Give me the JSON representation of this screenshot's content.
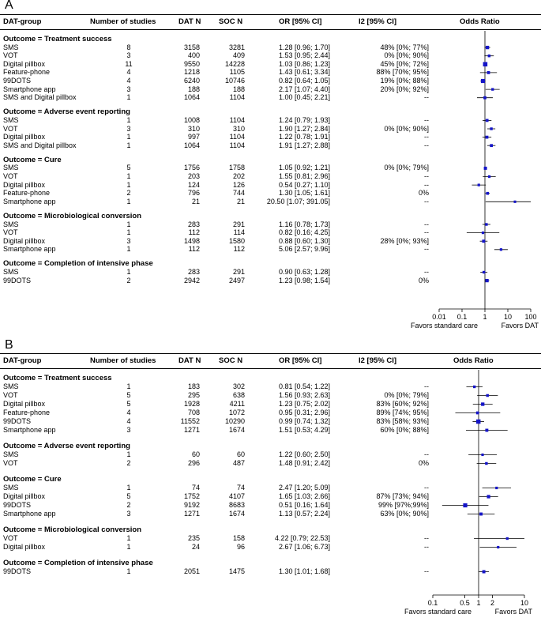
{
  "chart_data": [
    {
      "type": "forest",
      "panel_label": "A",
      "headers": {
        "group": "DAT-group",
        "studies": "Number of studies",
        "dat": "DAT N",
        "soc": "SOC N",
        "or": "OR [95% CI]",
        "i2": "I2 [95% CI]",
        "plot": "Odds Ratio"
      },
      "xaxis": {
        "scale": "log",
        "min": 0.01,
        "max": 100,
        "ticks": [
          0.01,
          0.1,
          1,
          10,
          100
        ],
        "tick_labels": [
          "0.01",
          "0.1",
          "1",
          "10",
          "100"
        ]
      },
      "favors_left": "Favors standard care",
      "favors_right": "Favors DAT",
      "outcomes": [
        {
          "title": "Outcome = Treatment success",
          "rows": [
            {
              "group": "SMS",
              "studies": "8",
              "dat_n": "3158",
              "soc_n": "3281",
              "or_text": "1.28 [0.96;  1.70]",
              "i2": "48% [0%; 77%]",
              "or": 1.28,
              "lo": 0.96,
              "hi": 1.7
            },
            {
              "group": "VOT",
              "studies": "3",
              "dat_n": "400",
              "soc_n": "409",
              "or_text": "1.53 [0.95;  2.44]",
              "i2": "0% [0%; 90%]",
              "or": 1.53,
              "lo": 0.95,
              "hi": 2.44
            },
            {
              "group": "Digital pillbox",
              "studies": "11",
              "dat_n": "9550",
              "soc_n": "14228",
              "or_text": "1.03 [0.86;  1.23]",
              "i2": "45% [0%; 72%]",
              "or": 1.03,
              "lo": 0.86,
              "hi": 1.23
            },
            {
              "group": "Feature-phone",
              "studies": "4",
              "dat_n": "1218",
              "soc_n": "1105",
              "or_text": "1.43 [0.61;  3.34]",
              "i2": "88% [70%; 95%]",
              "or": 1.43,
              "lo": 0.61,
              "hi": 3.34
            },
            {
              "group": "99DOTS",
              "studies": "4",
              "dat_n": "6240",
              "soc_n": "10746",
              "or_text": "0.82 [0.64;  1.05]",
              "i2": "19% [0%; 88%]",
              "or": 0.82,
              "lo": 0.64,
              "hi": 1.05
            },
            {
              "group": "Smartphone app",
              "studies": "3",
              "dat_n": "188",
              "soc_n": "188",
              "or_text": "2.17 [1.07;  4.40]",
              "i2": "20% [0%; 92%]",
              "or": 2.17,
              "lo": 1.07,
              "hi": 4.4
            },
            {
              "group": "SMS and Digital pillbox",
              "studies": "1",
              "dat_n": "1064",
              "soc_n": "1104",
              "or_text": "1.00 [0.45;  2.21]",
              "i2": "--",
              "or": 1.0,
              "lo": 0.45,
              "hi": 2.21
            }
          ]
        },
        {
          "title": "Outcome = Adverse event reporting",
          "rows": [
            {
              "group": "SMS",
              "studies": "1",
              "dat_n": "1008",
              "soc_n": "1104",
              "or_text": "1.24 [0.79;  1.93]",
              "i2": "--",
              "or": 1.24,
              "lo": 0.79,
              "hi": 1.93
            },
            {
              "group": "VOT",
              "studies": "3",
              "dat_n": "310",
              "soc_n": "310",
              "or_text": "1.90 [1.27;  2.84]",
              "i2": "0% [0%; 90%]",
              "or": 1.9,
              "lo": 1.27,
              "hi": 2.84
            },
            {
              "group": "Digital pillbox",
              "studies": "1",
              "dat_n": "997",
              "soc_n": "1104",
              "or_text": "1.22 [0.78;  1.91]",
              "i2": "--",
              "or": 1.22,
              "lo": 0.78,
              "hi": 1.91
            },
            {
              "group": "SMS and Digital pillbox",
              "studies": "1",
              "dat_n": "1064",
              "soc_n": "1104",
              "or_text": "1.91 [1.27;  2.88]",
              "i2": "--",
              "or": 1.91,
              "lo": 1.27,
              "hi": 2.88
            }
          ]
        },
        {
          "title": "Outcome = Cure",
          "rows": [
            {
              "group": "SMS",
              "studies": "5",
              "dat_n": "1756",
              "soc_n": "1758",
              "or_text": "1.05 [0.92;  1.21]",
              "i2": "0% [0%; 79%]",
              "or": 1.05,
              "lo": 0.92,
              "hi": 1.21
            },
            {
              "group": "VOT",
              "studies": "1",
              "dat_n": "203",
              "soc_n": "202",
              "or_text": "1.55 [0.81;  2.96]",
              "i2": "--",
              "or": 1.55,
              "lo": 0.81,
              "hi": 2.96
            },
            {
              "group": "Digital pillbox",
              "studies": "1",
              "dat_n": "124",
              "soc_n": "126",
              "or_text": "0.54 [0.27;  1.10]",
              "i2": "--",
              "or": 0.54,
              "lo": 0.27,
              "hi": 1.1
            },
            {
              "group": "Feature-phone",
              "studies": "2",
              "dat_n": "796",
              "soc_n": "744",
              "or_text": "1.30 [1.05;  1.61]",
              "i2": "0%",
              "or": 1.3,
              "lo": 1.05,
              "hi": 1.61
            },
            {
              "group": "Smartphone app",
              "studies": "1",
              "dat_n": "21",
              "soc_n": "21",
              "or_text": "20.50 [1.07; 391.05]",
              "i2": "--",
              "or": 20.5,
              "lo": 1.07,
              "hi": 391.05
            }
          ]
        },
        {
          "title": "Outcome = Microbiological conversion",
          "rows": [
            {
              "group": "SMS",
              "studies": "1",
              "dat_n": "283",
              "soc_n": "291",
              "or_text": "1.16 [0.78;  1.73]",
              "i2": "--",
              "or": 1.16,
              "lo": 0.78,
              "hi": 1.73
            },
            {
              "group": "VOT",
              "studies": "1",
              "dat_n": "112",
              "soc_n": "114",
              "or_text": "0.82 [0.16;  4.25]",
              "i2": "--",
              "or": 0.82,
              "lo": 0.16,
              "hi": 4.25
            },
            {
              "group": "Digital pillbox",
              "studies": "3",
              "dat_n": "1498",
              "soc_n": "1580",
              "or_text": "0.88 [0.60;  1.30]",
              "i2": "28% [0%; 93%]",
              "or": 0.88,
              "lo": 0.6,
              "hi": 1.3
            },
            {
              "group": "Smartphone app",
              "studies": "1",
              "dat_n": "112",
              "soc_n": "112",
              "or_text": "5.06 [2.57;  9.96]",
              "i2": "--",
              "or": 5.06,
              "lo": 2.57,
              "hi": 9.96
            }
          ]
        },
        {
          "title": "Outcome = Completion of intensive phase",
          "rows": [
            {
              "group": "SMS",
              "studies": "1",
              "dat_n": "283",
              "soc_n": "291",
              "or_text": "0.90 [0.63;  1.28]",
              "i2": "--",
              "or": 0.9,
              "lo": 0.63,
              "hi": 1.28
            },
            {
              "group": "99DOTS",
              "studies": "2",
              "dat_n": "2942",
              "soc_n": "2497",
              "or_text": "1.23 [0.98;  1.54]",
              "i2": "0%",
              "or": 1.23,
              "lo": 0.98,
              "hi": 1.54
            }
          ]
        }
      ]
    },
    {
      "type": "forest",
      "panel_label": "B",
      "headers": {
        "group": "DAT-group",
        "studies": "Number of studies",
        "dat": "DAT N",
        "soc": "SOC N",
        "or": "OR [95% CI]",
        "i2": "I2 [95% CI]",
        "plot": "Odds Ratio"
      },
      "xaxis": {
        "scale": "log",
        "min": 0.1,
        "max": 10,
        "ticks": [
          0.1,
          0.5,
          1,
          2,
          10
        ],
        "tick_labels": [
          "0.1",
          "0.5",
          "1",
          "2",
          "10"
        ]
      },
      "favors_left": "Favors standard care",
      "favors_right": "Favors DAT",
      "outcomes": [
        {
          "title": "Outcome = Treatment success",
          "rows": [
            {
              "group": "SMS",
              "studies": "1",
              "dat_n": "183",
              "soc_n": "302",
              "or_text": "0.81 [0.54;  1.22]",
              "i2": "--",
              "or": 0.81,
              "lo": 0.54,
              "hi": 1.22
            },
            {
              "group": "VOT",
              "studies": "5",
              "dat_n": "295",
              "soc_n": "638",
              "or_text": "1.56 [0.93;  2.63]",
              "i2": "0% [0%; 79%]",
              "or": 1.56,
              "lo": 0.93,
              "hi": 2.63
            },
            {
              "group": "Digital pillbox",
              "studies": "5",
              "dat_n": "1928",
              "soc_n": "4211",
              "or_text": "1.23 [0.75;  2.02]",
              "i2": "83% [60%; 92%]",
              "or": 1.23,
              "lo": 0.75,
              "hi": 2.02
            },
            {
              "group": "Feature-phone",
              "studies": "4",
              "dat_n": "708",
              "soc_n": "1072",
              "or_text": "0.95 [0.31;  2.96]",
              "i2": "89% [74%; 95%]",
              "or": 0.95,
              "lo": 0.31,
              "hi": 2.96
            },
            {
              "group": "99DOTS",
              "studies": "4",
              "dat_n": "11552",
              "soc_n": "10290",
              "or_text": "0.99 [0.74;  1.32]",
              "i2": "83% [58%; 93%]",
              "or": 0.99,
              "lo": 0.74,
              "hi": 1.32
            },
            {
              "group": "Smartphone app",
              "studies": "3",
              "dat_n": "1271",
              "soc_n": "1674",
              "or_text": "1.51 [0.53;  4.29]",
              "i2": "60% [0%; 88%]",
              "or": 1.51,
              "lo": 0.53,
              "hi": 4.29
            }
          ]
        },
        {
          "title": "Outcome = Adverse event reporting",
          "rows": [
            {
              "group": "SMS",
              "studies": "1",
              "dat_n": "60",
              "soc_n": "60",
              "or_text": "1.22 [0.60;  2.50]",
              "i2": "--",
              "or": 1.22,
              "lo": 0.6,
              "hi": 2.5
            },
            {
              "group": "VOT",
              "studies": "2",
              "dat_n": "296",
              "soc_n": "487",
              "or_text": "1.48 [0.91;  2.42]",
              "i2": "0%",
              "or": 1.48,
              "lo": 0.91,
              "hi": 2.42
            }
          ]
        },
        {
          "title": "Outcome = Cure",
          "rows": [
            {
              "group": "SMS",
              "studies": "1",
              "dat_n": "74",
              "soc_n": "74",
              "or_text": "2.47 [1.20;  5.09]",
              "i2": "--",
              "or": 2.47,
              "lo": 1.2,
              "hi": 5.09
            },
            {
              "group": "Digital pillbox",
              "studies": "5",
              "dat_n": "1752",
              "soc_n": "4107",
              "or_text": "1.65 [1.03;  2.66]",
              "i2": "87% [73%; 94%]",
              "or": 1.65,
              "lo": 1.03,
              "hi": 2.66
            },
            {
              "group": "99DOTS",
              "studies": "2",
              "dat_n": "9192",
              "soc_n": "8683",
              "or_text": "0.51 [0.16;  1.64]",
              "i2": "99% [97%;99%]",
              "or": 0.51,
              "lo": 0.16,
              "hi": 1.64
            },
            {
              "group": "Smartphone app",
              "studies": "3",
              "dat_n": "1271",
              "soc_n": "1674",
              "or_text": "1.13 [0.57;  2.24]",
              "i2": "63% [0%; 90%]",
              "or": 1.13,
              "lo": 0.57,
              "hi": 2.24
            }
          ]
        },
        {
          "title": "Outcome = Microbiological conversion",
          "rows": [
            {
              "group": "VOT",
              "studies": "1",
              "dat_n": "235",
              "soc_n": "158",
              "or_text": "4.22 [0.79; 22.53]",
              "i2": "--",
              "or": 4.22,
              "lo": 0.79,
              "hi": 22.53
            },
            {
              "group": "Digital pillbox",
              "studies": "1",
              "dat_n": "24",
              "soc_n": "96",
              "or_text": "2.67 [1.06;  6.73]",
              "i2": "--",
              "or": 2.67,
              "lo": 1.06,
              "hi": 6.73
            }
          ]
        },
        {
          "title": "Outcome = Completion of intensive phase",
          "rows": [
            {
              "group": "99DOTS",
              "studies": "1",
              "dat_n": "2051",
              "soc_n": "1475",
              "or_text": "1.30 [1.01;  1.68]",
              "i2": "--",
              "or": 1.3,
              "lo": 1.01,
              "hi": 1.68
            }
          ]
        }
      ]
    }
  ],
  "colors": {
    "marker": "#1515c8",
    "line": "#000000"
  }
}
